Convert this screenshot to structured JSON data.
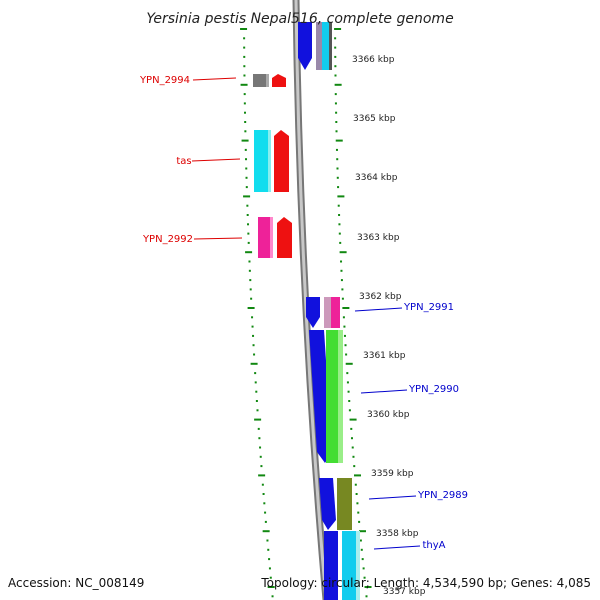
{
  "title": "Yersinia pestis Nepal516, complete genome",
  "scale_labels": [
    "3366 kbp",
    "3365 kbp",
    "3364 kbp",
    "3363 kbp",
    "3362 kbp",
    "3361 kbp",
    "3360 kbp",
    "3359 kbp",
    "3358 kbp",
    "3357 kbp"
  ],
  "genes_left": [
    {
      "name": "YPN_2994",
      "color": "#dd0000"
    },
    {
      "name": "tas",
      "color": "#dd0000"
    },
    {
      "name": "YPN_2992",
      "color": "#dd0000"
    }
  ],
  "genes_right": [
    {
      "name": "YPN_2991",
      "color": "#0000cc"
    },
    {
      "name": "YPN_2990",
      "color": "#0000cc"
    },
    {
      "name": "YPN_2989",
      "color": "#0000cc"
    },
    {
      "name": "thyA",
      "color": "#0000cc"
    }
  ],
  "footer": {
    "accession": "Accession: NC_008149",
    "summary": "Topology: circular; Length: 4,534,590 bp; Genes: 4,085"
  },
  "colors": {
    "backbone": "#a9a9a9",
    "tick": "#118811",
    "forward_arrow": "#ee1111",
    "reverse_arrow": "#1111dd",
    "cog_cyan": "#11ddee",
    "cog_green": "#44dd33",
    "cog_olive": "#778822",
    "cog_magenta": "#ee2299",
    "cog_gray": "#777777"
  }
}
